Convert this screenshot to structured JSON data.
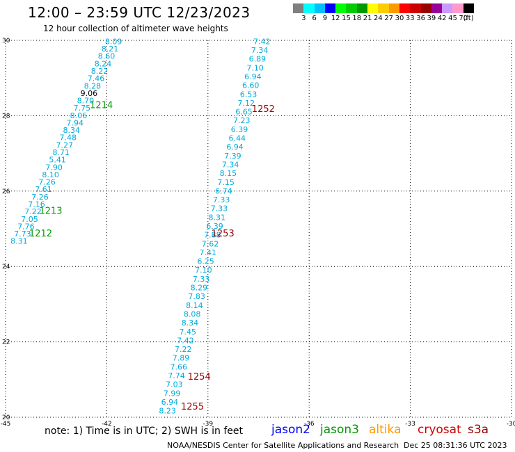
{
  "title": "12:00 – 23:59 UTC 12/23/2023",
  "subtitle": "12 hour collection of altimeter wave heights",
  "legend": {
    "colors": [
      "#808080",
      "#00ffff",
      "#00bfff",
      "#0000ff",
      "#00ff00",
      "#00cc00",
      "#009900",
      "#ffff00",
      "#ffcc00",
      "#ff9900",
      "#ff0000",
      "#cc0000",
      "#990000",
      "#990099",
      "#cc99ff",
      "#ff99cc",
      "#000000"
    ],
    "labels": [
      "3",
      "6",
      "9",
      "12",
      "15",
      "18",
      "21",
      "24",
      "27",
      "30",
      "33",
      "36",
      "39",
      "42",
      "45",
      "70",
      "(ft)"
    ]
  },
  "note": "note:  1) Time is in UTC;  2) SWH is in feet",
  "satellites": [
    {
      "name": "jason2",
      "color": "#0000ee"
    },
    {
      "name": "jason3",
      "color": "#009900"
    },
    {
      "name": "altika",
      "color": "#ff9900"
    },
    {
      "name": "cryosat",
      "color": "#cc0000"
    },
    {
      "name": "s3a",
      "color": "#990000"
    }
  ],
  "credit": "NOAA/NESDIS Center for Satellite Applications and Research",
  "timestamp": "Dec 25 08:31:36 UTC 2023",
  "map_data": {
    "lon_range": [
      -45,
      -30
    ],
    "lat_range": [
      20,
      30
    ],
    "lon_ticks": [
      "-45",
      "-42",
      "-39",
      "-36",
      "-33",
      "-30"
    ],
    "lat_ticks": [
      "30",
      "28",
      "26",
      "24",
      "22",
      "20"
    ],
    "track_color": "#00aadd",
    "tracks": [
      {
        "lon_start": -41.8,
        "lat_start": 29.9,
        "lon_end": -44.6,
        "lat_end": 24.6,
        "values": [
          "8.09",
          "8.21",
          "8.60",
          "8.24",
          "8.22",
          "7.46",
          "8.28",
          "9.06",
          "8.70",
          "7.75",
          "8.06",
          "7.94",
          "8.34",
          "7.48",
          "7.27",
          "8.71",
          "5.41",
          "7.90",
          "8.10",
          "7.26",
          "7.61",
          "7.26",
          "7.16",
          "7.22",
          "7.05",
          "7.76",
          "7.73",
          "8.31"
        ],
        "colors": {
          "7": "#000000"
        }
      },
      {
        "lon_start": -37.4,
        "lat_start": 29.9,
        "lon_end": -40.2,
        "lat_end": 20.1,
        "values": [
          "7.42",
          "7.34",
          "6.89",
          "7.10",
          "6.94",
          "6.60",
          "6.53",
          "7.12",
          "6.65",
          "7.23",
          "6.39",
          "6.44",
          "6.94",
          "7.39",
          "7.34",
          "8.15",
          "7.15",
          "6.74",
          "7.33",
          "7.33",
          "8.31",
          "6.39",
          "7.88",
          "7.62",
          "7.41",
          "6.25",
          "7.10",
          "7.33",
          "8.29",
          "7.83",
          "8.14",
          "8.08",
          "8.34",
          "7.45",
          "7.42",
          "7.22",
          "7.89",
          "7.66",
          "7.74",
          "7.03",
          "7.99",
          "6.94",
          "8.23"
        ],
        "colors": {}
      }
    ],
    "time_labels": [
      {
        "text": "1214",
        "lon": -42.5,
        "lat": 28.2,
        "color": "#009900"
      },
      {
        "text": "1213",
        "lon": -44.0,
        "lat": 25.4,
        "color": "#009900"
      },
      {
        "text": "1212",
        "lon": -44.3,
        "lat": 24.8,
        "color": "#009900"
      },
      {
        "text": "1252",
        "lon": -37.7,
        "lat": 28.1,
        "color": "#990000"
      },
      {
        "text": "1253",
        "lon": -38.9,
        "lat": 24.8,
        "color": "#990000"
      },
      {
        "text": "1254",
        "lon": -39.6,
        "lat": 21.0,
        "color": "#990000"
      },
      {
        "text": "1255",
        "lon": -39.8,
        "lat": 20.2,
        "color": "#990000"
      }
    ]
  }
}
